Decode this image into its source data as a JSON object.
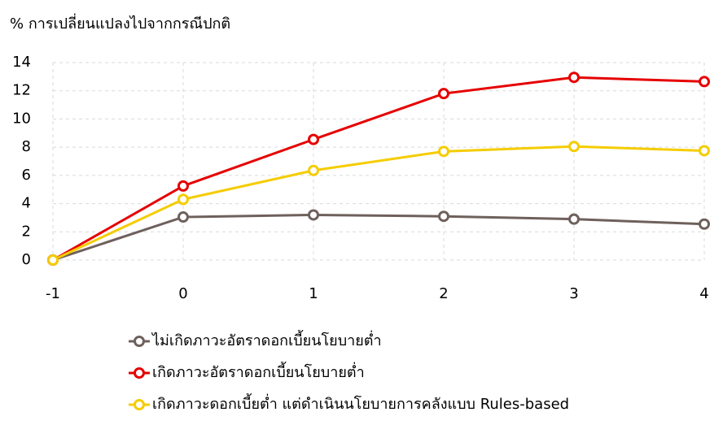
{
  "chart_data": {
    "type": "line",
    "title": "% การเปลี่ยนแปลงไปจากกรณีปกติ",
    "x": [
      -1,
      0,
      1,
      2,
      3,
      4
    ],
    "series": [
      {
        "name": "ไม่เกิดภาวะอัตราดอกเบี้ยนโยบายต่ำ",
        "color": "#6e605c",
        "values": [
          0,
          3.05,
          3.2,
          3.1,
          2.9,
          2.55
        ]
      },
      {
        "name": "เกิดภาวะอัตราดอกเบี้ยนโยบายต่ำ",
        "color": "#e60000",
        "values": [
          0,
          5.25,
          8.55,
          11.8,
          12.95,
          12.65
        ]
      },
      {
        "name": "เกิดภาวะดอกเบี้ยต่ำ แต่ดำเนินนโยบายการคลังแบบ Rules-based",
        "color": "#f5cc00",
        "values": [
          0,
          4.3,
          6.35,
          7.7,
          8.05,
          7.75
        ]
      }
    ],
    "xlim": [
      -1,
      4
    ],
    "xticks": [
      -1,
      0,
      1,
      2,
      3,
      4
    ],
    "ylim": [
      0,
      14
    ],
    "yticks": [
      0,
      2,
      4,
      6,
      8,
      10,
      12,
      14
    ],
    "grid": true,
    "legend": "bottom"
  }
}
